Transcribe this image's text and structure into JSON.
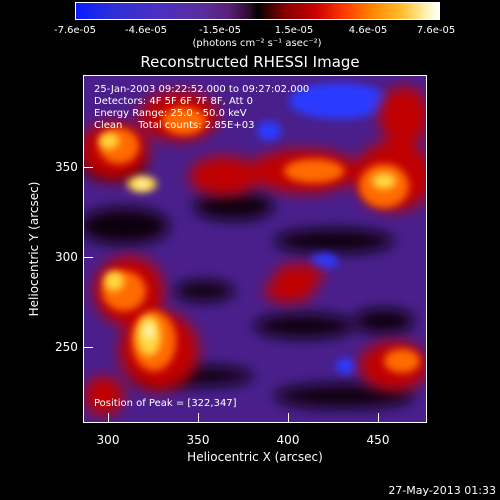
{
  "colorbar": {
    "tick_labels": [
      "-7.6e-05",
      "-4.6e-05",
      "-1.5e-05",
      "1.5e-05",
      "4.6e-05",
      "7.6e-05"
    ],
    "units_text": "(photons cm⁻² s⁻¹ asec⁻²)",
    "colors": {
      "min": "#0a1cff",
      "mid": "#000000",
      "max": "#ffffff"
    }
  },
  "plot": {
    "title": "Reconstructed RHESSI Image",
    "info": {
      "time_range": "25-Jan-2003 09:22:52.000 to 09:27:02.000",
      "detectors": "Detectors: 4F 5F 6F 7F 8F, Att 0",
      "energy_range": "Energy Range: 25.0 - 50.0 keV",
      "clean": "Clean     Total counts: 2.85E+03"
    },
    "peak_text": "Position of Peak = [322,347]",
    "x_axis": {
      "label": "Heliocentric X (arcsec)",
      "ticks": [
        "300",
        "350",
        "400",
        "450"
      ],
      "tick_values": [
        300,
        350,
        400,
        450
      ],
      "range": [
        283,
        476
      ]
    },
    "y_axis": {
      "label": "Heliocentric Y (arcsec)",
      "ticks": [
        "250",
        "300",
        "350"
      ],
      "tick_values": [
        250,
        300,
        350
      ],
      "range": [
        205,
        400
      ]
    }
  },
  "timestamp": "27-May-2013 01:33"
}
